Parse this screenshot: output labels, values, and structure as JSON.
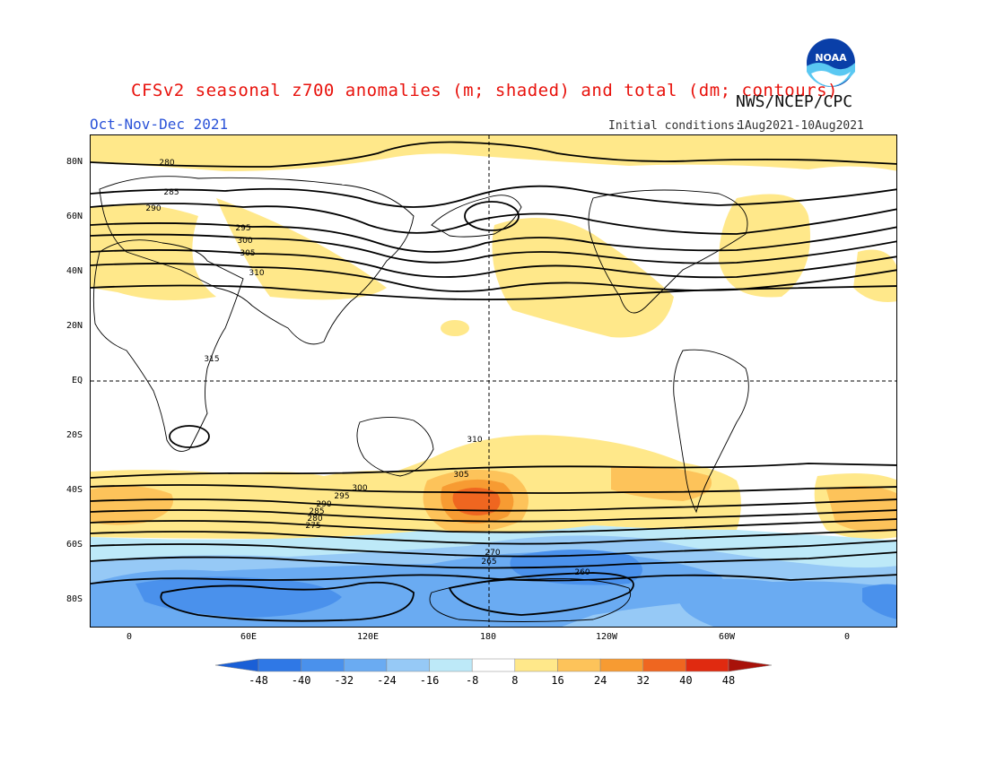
{
  "title": "CFSv2 seasonal z700 anomalies (m; shaded) and total (dm; contours)",
  "agency": "NWS/NCEP/CPC",
  "logo_text": "NOAA",
  "season": "Oct-Nov-Dec 2021",
  "initial_conditions": {
    "label": "Initial conditions:",
    "value": "1Aug2021-10Aug2021"
  },
  "axes": {
    "lat_labels": [
      "80N",
      "60N",
      "40N",
      "20N",
      "EQ",
      "20S",
      "40S",
      "60S",
      "80S"
    ],
    "lon_labels": [
      "0",
      "60E",
      "120E",
      "180",
      "120W",
      "60W",
      "0"
    ]
  },
  "contour_labels": {
    "north": [
      "280",
      "285",
      "290",
      "295",
      "300",
      "305",
      "310",
      "315"
    ],
    "south": [
      "310",
      "305",
      "300",
      "295",
      "290",
      "285",
      "280",
      "275",
      "270",
      "265",
      "260"
    ]
  },
  "colorbar": {
    "ticks": [
      "-48",
      "-40",
      "-32",
      "-24",
      "-16",
      "-8",
      "8",
      "16",
      "24",
      "32",
      "40",
      "48"
    ],
    "colors": [
      "#1a5fd6",
      "#2f78e6",
      "#4a91ec",
      "#6aabf2",
      "#96c9f6",
      "#bde9f8",
      "#ffffff",
      "#ffe88a",
      "#fdc35a",
      "#f79b32",
      "#ef6620",
      "#e02a10",
      "#a8120a"
    ]
  },
  "palette": {
    "title_color": "#e8120c",
    "season_color": "#2a52d8",
    "ocean_bg": "#ffffff",
    "land_outline": "#000000"
  }
}
